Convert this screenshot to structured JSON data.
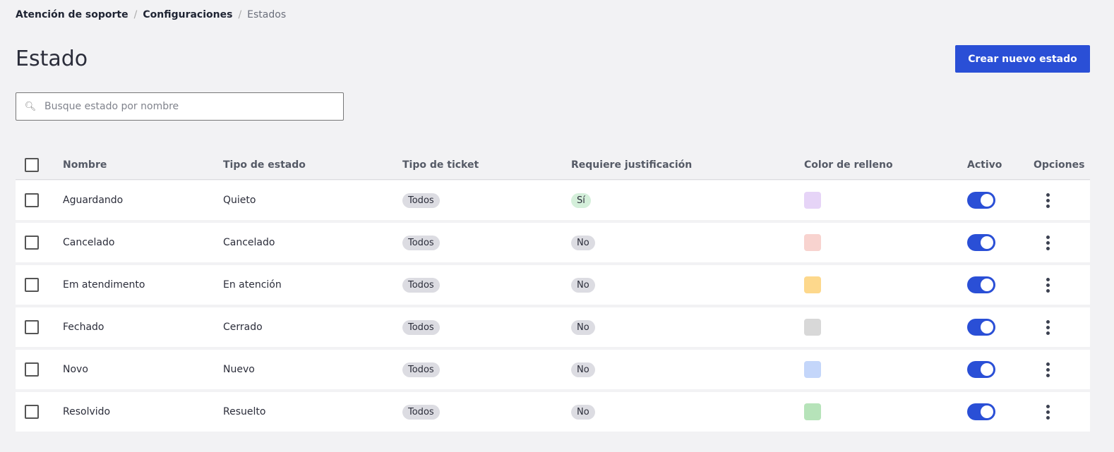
{
  "breadcrumb": [
    "Atención de soporte",
    "Configuraciones",
    "Estados"
  ],
  "title": "Estado",
  "create_label": "Crear nuevo estado",
  "search": {
    "placeholder": "Busque estado por nombre",
    "value": ""
  },
  "columns": [
    "Nombre",
    "Tipo de estado",
    "Tipo de ticket",
    "Requiere justificación",
    "Color de relleno",
    "Activo",
    "Opciones"
  ],
  "rows": [
    {
      "name": "Aguardando",
      "state_type": "Quieto",
      "ticket_type": "Todos",
      "justification": "Sí",
      "color": "#e6d4f7",
      "active": true
    },
    {
      "name": "Cancelado",
      "state_type": "Cancelado",
      "ticket_type": "Todos",
      "justification": "No",
      "color": "#f8d3cf",
      "active": true
    },
    {
      "name": "Em atendimento",
      "state_type": "En atención",
      "ticket_type": "Todos",
      "justification": "No",
      "color": "#fdd88c",
      "active": true
    },
    {
      "name": "Fechado",
      "state_type": "Cerrado",
      "ticket_type": "Todos",
      "justification": "No",
      "color": "#d8d8d8",
      "active": true
    },
    {
      "name": "Novo",
      "state_type": "Nuevo",
      "ticket_type": "Todos",
      "justification": "No",
      "color": "#c4d6fa",
      "active": true
    },
    {
      "name": "Resolvido",
      "state_type": "Resuelto",
      "ticket_type": "Todos",
      "justification": "No",
      "color": "#b6e3b9",
      "active": true
    }
  ],
  "accent": "#2a4fd6"
}
